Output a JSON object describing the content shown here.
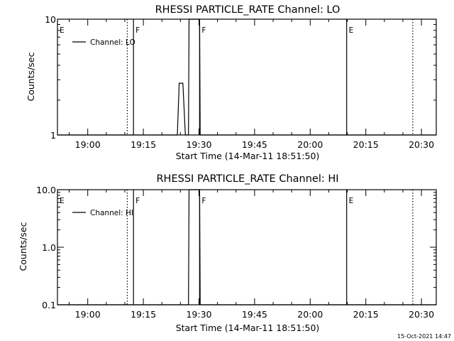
{
  "chart_data": [
    {
      "type": "line",
      "title": "RHESSI PARTICLE_RATE Channel: LO",
      "xlabel": "Start Time (14-Mar-11 18:51:50)",
      "ylabel": "Counts/sec",
      "yscale": "log",
      "ylim": [
        1,
        10
      ],
      "ytick_labels": [
        "1",
        "10"
      ],
      "xlim": [
        "18:51:50",
        "20:34:00"
      ],
      "xtick_labels": [
        "19:00",
        "19:15",
        "19:30",
        "19:45",
        "20:00",
        "20:15",
        "20:30"
      ],
      "legend": {
        "entries": [
          "Channel: LO"
        ],
        "placement": "top-left"
      },
      "series": [
        {
          "name": "Channel: LO",
          "points": [
            [
              "18:51:50",
              1
            ],
            [
              "19:24:10",
              1
            ],
            [
              "19:24:40",
              2.8
            ],
            [
              "19:25:40",
              2.8
            ],
            [
              "19:26:20",
              1
            ],
            [
              "19:27:10",
              1
            ],
            [
              "19:27:20",
              10
            ],
            [
              "19:30:10",
              10
            ],
            [
              "19:30:20",
              1
            ],
            [
              "20:34:00",
              1
            ]
          ]
        }
      ],
      "event_lines": [
        {
          "label": "E",
          "time": "18:51:50",
          "style": "solid"
        },
        {
          "label": "",
          "time": "19:10:40",
          "style": "dotted"
        },
        {
          "label": "F",
          "time": "19:12:20",
          "style": "solid"
        },
        {
          "label": "F",
          "time": "19:30:10",
          "style": "solid"
        },
        {
          "label": "E",
          "time": "20:09:50",
          "style": "solid"
        },
        {
          "label": "",
          "time": "20:27:40",
          "style": "dotted"
        }
      ]
    },
    {
      "type": "line",
      "title": "RHESSI PARTICLE_RATE Channel: HI",
      "xlabel": "Start Time (14-Mar-11 18:51:50)",
      "ylabel": "Counts/sec",
      "yscale": "log",
      "ylim": [
        0.1,
        10
      ],
      "ytick_labels": [
        "0.1",
        "1.0",
        "10.0"
      ],
      "xlim": [
        "18:51:50",
        "20:34:00"
      ],
      "xtick_labels": [
        "19:00",
        "19:15",
        "19:30",
        "19:45",
        "20:00",
        "20:15",
        "20:30"
      ],
      "legend": {
        "entries": [
          "Channel: HI"
        ],
        "placement": "top-left"
      },
      "series": [
        {
          "name": "Channel: HI",
          "points": [
            [
              "18:51:50",
              0.1
            ],
            [
              "19:27:10",
              0.1
            ],
            [
              "19:27:20",
              10
            ],
            [
              "19:30:10",
              10
            ],
            [
              "19:30:20",
              0.1
            ],
            [
              "20:34:00",
              0.1
            ]
          ]
        }
      ],
      "event_lines": [
        {
          "label": "E",
          "time": "18:51:50",
          "style": "solid"
        },
        {
          "label": "",
          "time": "19:10:40",
          "style": "dotted"
        },
        {
          "label": "F",
          "time": "19:12:20",
          "style": "solid"
        },
        {
          "label": "F",
          "time": "19:30:10",
          "style": "solid"
        },
        {
          "label": "E",
          "time": "20:09:50",
          "style": "solid"
        },
        {
          "label": "",
          "time": "20:27:40",
          "style": "dotted"
        }
      ]
    }
  ],
  "footer": {
    "timestamp": "15-Oct-2021 14:47"
  }
}
